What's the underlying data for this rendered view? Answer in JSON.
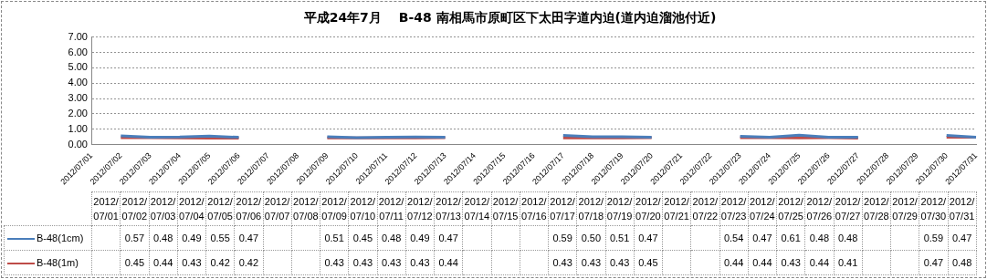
{
  "chart_data": {
    "type": "line",
    "title": "平成24年7月　 B-48 南相馬市原町区下太田字道内迫(道内迫溜池付近)",
    "categories": [
      "2012/07/01",
      "2012/07/02",
      "2012/07/03",
      "2012/07/04",
      "2012/07/05",
      "2012/07/06",
      "2012/07/07",
      "2012/07/08",
      "2012/07/09",
      "2012/07/10",
      "2012/07/11",
      "2012/07/12",
      "2012/07/13",
      "2012/07/14",
      "2012/07/15",
      "2012/07/16",
      "2012/07/17",
      "2012/07/18",
      "2012/07/19",
      "2012/07/20",
      "2012/07/21",
      "2012/07/22",
      "2012/07/23",
      "2012/07/24",
      "2012/07/25",
      "2012/07/26",
      "2012/07/27",
      "2012/07/28",
      "2012/07/29",
      "2012/07/30",
      "2012/07/31"
    ],
    "series": [
      {
        "name": "B-48(1cm)",
        "color": "#4a7ebb",
        "values": [
          null,
          0.57,
          0.48,
          0.49,
          0.55,
          0.47,
          null,
          null,
          0.51,
          0.45,
          0.48,
          0.49,
          0.47,
          null,
          null,
          null,
          0.59,
          0.5,
          0.51,
          0.47,
          null,
          null,
          0.54,
          0.47,
          0.61,
          0.48,
          0.48,
          null,
          null,
          0.59,
          0.47
        ],
        "value_labels": [
          null,
          "0.57",
          "0.48",
          "0.49",
          "0.55",
          "0.47",
          null,
          null,
          "0.51",
          "0.45",
          "0.48",
          "0.49",
          "0.47",
          null,
          null,
          null,
          "0.59",
          "0.50",
          "0.51",
          "0.47",
          null,
          null,
          "0.54",
          "0.47",
          "0.61",
          "0.48",
          "0.48",
          null,
          null,
          "0.59",
          "0.47"
        ]
      },
      {
        "name": "B-48(1m)",
        "color": "#be4b48",
        "values": [
          null,
          0.45,
          0.44,
          0.43,
          0.42,
          0.42,
          null,
          null,
          0.43,
          0.43,
          0.43,
          0.43,
          0.44,
          null,
          null,
          null,
          0.43,
          0.43,
          0.43,
          0.45,
          null,
          null,
          0.44,
          0.44,
          0.43,
          0.44,
          0.41,
          null,
          null,
          0.47,
          0.48
        ],
        "value_labels": [
          null,
          "0.45",
          "0.44",
          "0.43",
          "0.42",
          "0.42",
          null,
          null,
          "0.43",
          "0.43",
          "0.43",
          "0.43",
          "0.44",
          null,
          null,
          null,
          "0.43",
          "0.43",
          "0.43",
          "0.45",
          null,
          null,
          "0.44",
          "0.44",
          "0.43",
          "0.44",
          "0.41",
          null,
          null,
          "0.47",
          "0.48"
        ]
      }
    ],
    "ylim": [
      0,
      7
    ],
    "yticks": [
      {
        "value": 0,
        "label": "0.00"
      },
      {
        "value": 1,
        "label": "1.00"
      },
      {
        "value": 2,
        "label": "2.00"
      },
      {
        "value": 3,
        "label": "3.00"
      },
      {
        "value": 4,
        "label": "4.00"
      },
      {
        "value": 5,
        "label": "5.00"
      },
      {
        "value": 6,
        "label": "6.00"
      },
      {
        "value": 7,
        "label": "7.00"
      }
    ],
    "grid": "y",
    "legend": "bottom left",
    "marker": "none",
    "line_style": "solid"
  }
}
